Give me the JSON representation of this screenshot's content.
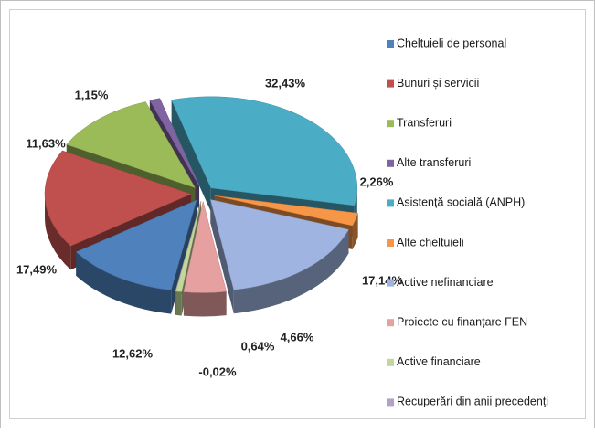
{
  "chart_data": {
    "type": "pie",
    "categories": [
      "Cheltuieli de personal",
      "Bunuri și servicii",
      "Transferuri",
      "Alte transferuri",
      "Asistență socială (ANPH)",
      "Alte cheltuieli",
      "Active nefinanciare",
      "Proiecte cu finanțare FEN",
      "Active financiare",
      "Recuperări din anii precedenți"
    ],
    "values": [
      12.62,
      17.49,
      11.63,
      1.15,
      32.43,
      2.26,
      17.14,
      4.66,
      0.64,
      -0.02
    ],
    "value_labels": [
      "12,62%",
      "17,49%",
      "11,63%",
      "1,15%",
      "32,43%",
      "2,26%",
      "17,14%",
      "4,66%",
      "0,64%",
      "-0,02%"
    ],
    "colors": [
      "#4f81bd",
      "#c0504d",
      "#9bbb59",
      "#8064a2",
      "#4bacc6",
      "#f79646",
      "#9fb4e0",
      "#e6a09f",
      "#c3d69b",
      "#b3a2c7"
    ],
    "legend": "right"
  }
}
